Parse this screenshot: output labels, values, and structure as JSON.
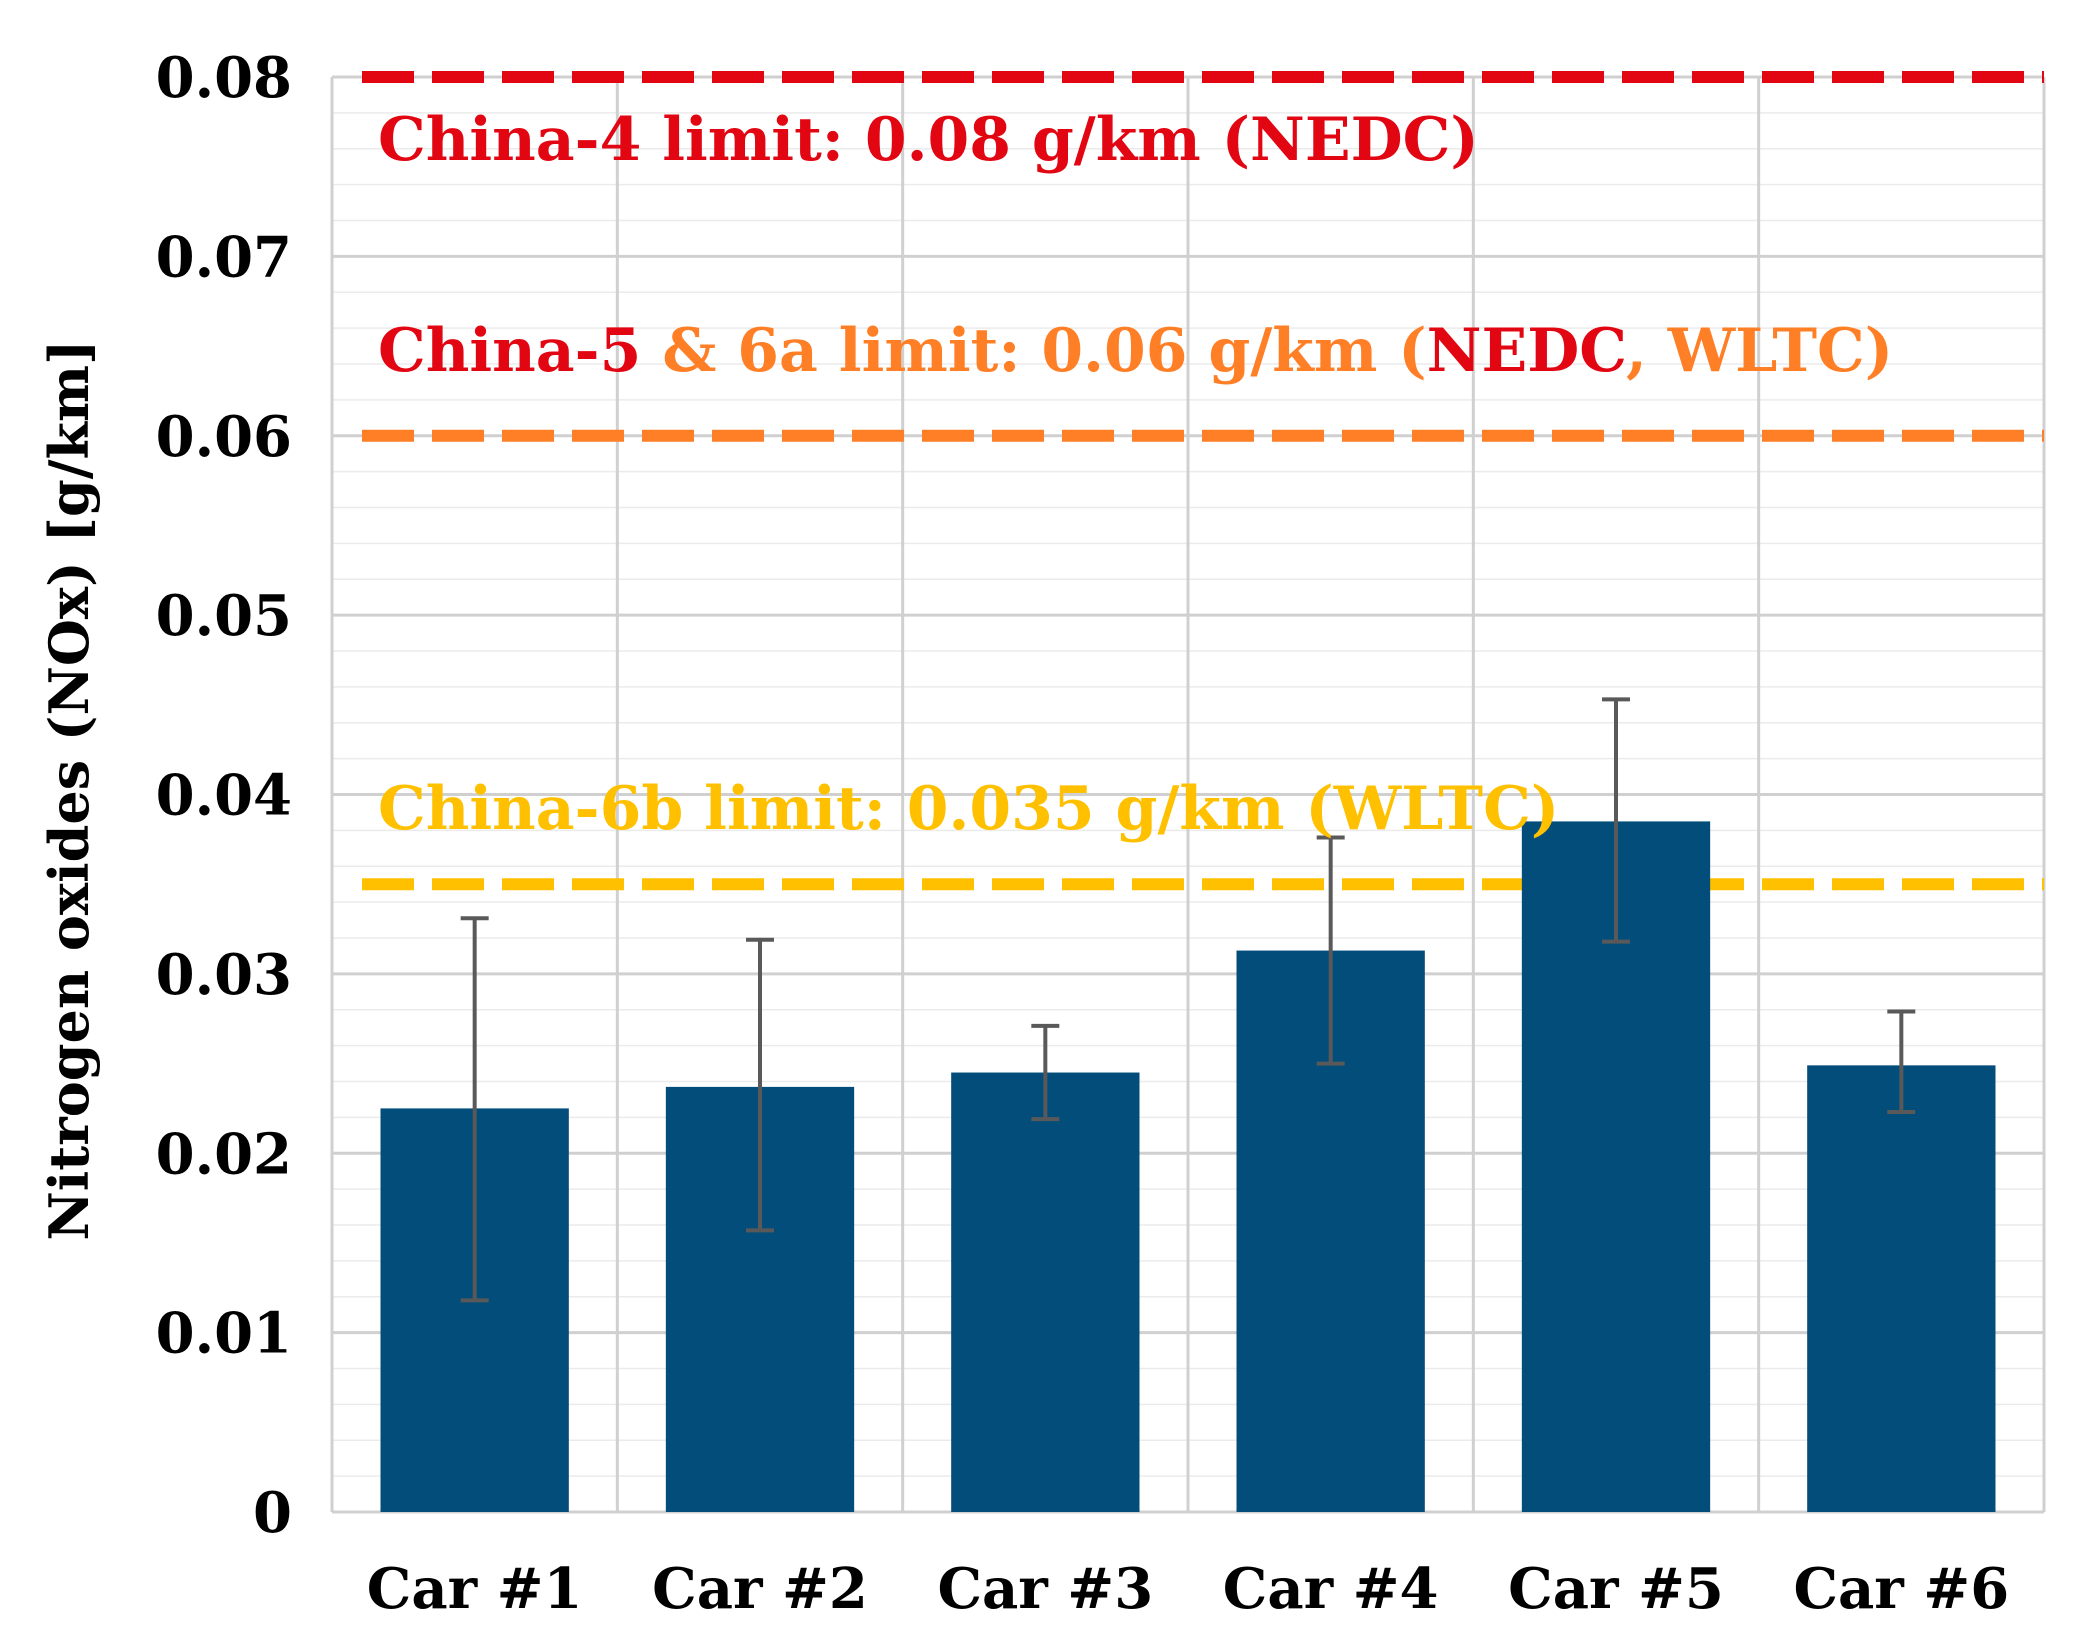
{
  "chart_data": {
    "type": "bar",
    "ylabel": "Nitrogen oxides (NOx) [g/km]",
    "xlabel": "",
    "ylim": [
      0,
      0.08
    ],
    "yticks": [
      {
        "value": 0,
        "label": "0"
      },
      {
        "value": 0.01,
        "label": "0.01"
      },
      {
        "value": 0.02,
        "label": "0.02"
      },
      {
        "value": 0.03,
        "label": "0.03"
      },
      {
        "value": 0.04,
        "label": "0.04"
      },
      {
        "value": 0.05,
        "label": "0.05"
      },
      {
        "value": 0.06,
        "label": "0.06"
      },
      {
        "value": 0.07,
        "label": "0.07"
      },
      {
        "value": 0.08,
        "label": "0.08"
      }
    ],
    "grid": true,
    "minor_grid_step": 0.002,
    "categories": [
      "Car #1",
      "Car #2",
      "Car #3",
      "Car #4",
      "Car #5",
      "Car #6"
    ],
    "values": [
      0.0225,
      0.0237,
      0.0245,
      0.0313,
      0.0385,
      0.0249
    ],
    "error_low": [
      0.0118,
      0.0157,
      0.0219,
      0.025,
      0.0318,
      0.0223
    ],
    "error_high": [
      0.0331,
      0.0319,
      0.0271,
      0.0376,
      0.0453,
      0.0279
    ],
    "bar_color": "#034d7a",
    "error_color": "#595959",
    "limit_lines": [
      {
        "value": 0.08,
        "color": "#e20613",
        "name": "China-4"
      },
      {
        "value": 0.06,
        "color": "#ff7f27",
        "name": "China-5 & 6a"
      },
      {
        "value": 0.035,
        "color": "#ffc000",
        "name": "China-6b"
      }
    ],
    "annotations": [
      {
        "anchor": "below-0.08",
        "segments": [
          {
            "text": "China-4 limit: 0.08 g/km (NEDC)",
            "color": "#e20613"
          }
        ]
      },
      {
        "anchor": "above-0.06",
        "segments": [
          {
            "text": "China-5",
            "color": "#e20613"
          },
          {
            "text": " & 6a limit: 0.06 g/km (",
            "color": "#ff7f27"
          },
          {
            "text": "NEDC",
            "color": "#e20613"
          },
          {
            "text": ", WLTC)",
            "color": "#ff7f27"
          }
        ]
      },
      {
        "anchor": "above-0.035",
        "segments": [
          {
            "text": "China-6b limit: 0.035 g/km (WLTC)",
            "color": "#ffc000"
          }
        ]
      }
    ]
  }
}
